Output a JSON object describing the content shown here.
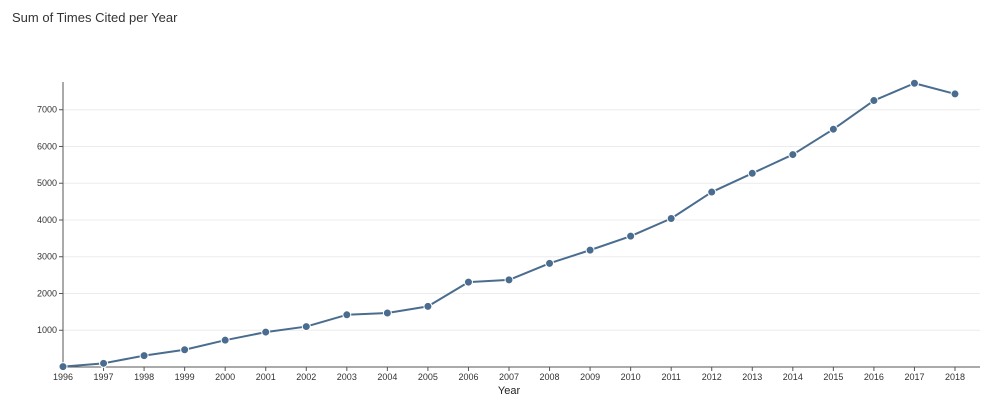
{
  "chart_data": {
    "type": "line",
    "title": "Sum of Times Cited per Year",
    "xlabel": "Year",
    "ylabel": "",
    "x": [
      "1996",
      "1997",
      "1998",
      "1999",
      "2000",
      "2001",
      "2002",
      "2003",
      "2004",
      "2005",
      "2006",
      "2007",
      "2008",
      "2009",
      "2010",
      "2011",
      "2012",
      "2013",
      "2014",
      "2015",
      "2016",
      "2017",
      "2018"
    ],
    "series": [
      {
        "values": [
          10,
          100,
          310,
          470,
          730,
          950,
          1100,
          1420,
          1470,
          1650,
          2310,
          2370,
          2820,
          3180,
          3560,
          4040,
          4760,
          5270,
          5780,
          6470,
          7250,
          7720,
          7430
        ]
      }
    ],
    "yticks": [
      "1000",
      "2000",
      "3000",
      "4000",
      "5000",
      "6000",
      "7000"
    ],
    "ylim": [
      0,
      7700
    ],
    "grid": true,
    "legend": "none",
    "colors": {
      "line": "#4a6d8f",
      "marker": "#4a6d8f",
      "grid": "#ececec",
      "axis": "#555555"
    }
  }
}
